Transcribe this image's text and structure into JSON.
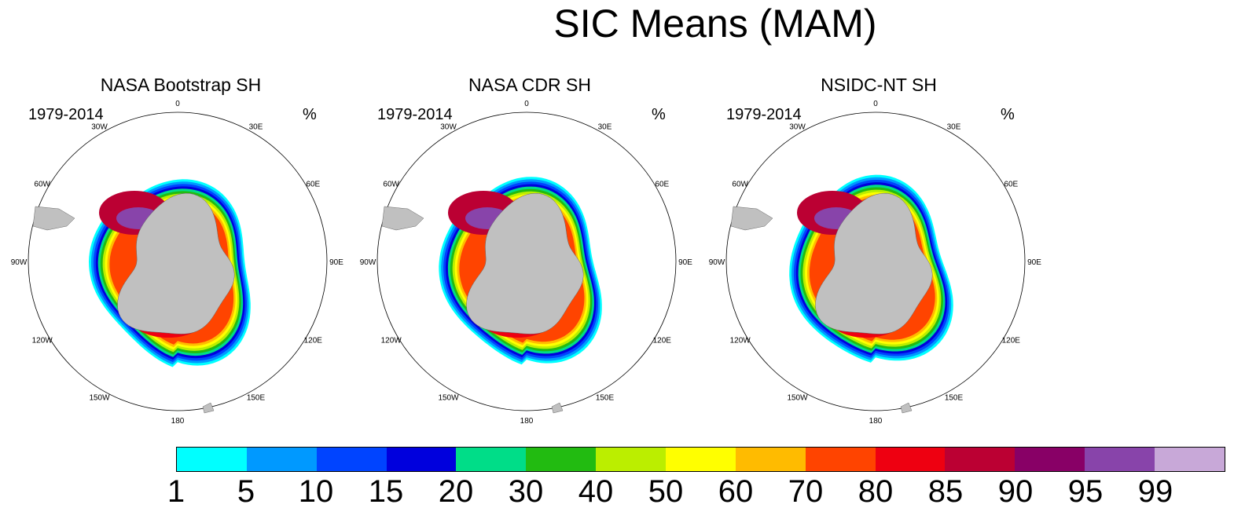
{
  "title": "SIC Means (MAM)",
  "panels": [
    {
      "title": "NASA Bootstrap SH",
      "period": "1979-2014",
      "units": "%"
    },
    {
      "title": "NASA CDR SH",
      "period": "1979-2014",
      "units": "%"
    },
    {
      "title": "NSIDC-NT SH",
      "period": "1979-2014",
      "units": "%"
    }
  ],
  "longitude_labels": [
    "0",
    "30E",
    "60E",
    "90E",
    "120E",
    "150E",
    "180",
    "150W",
    "120W",
    "90W",
    "60W",
    "30W"
  ],
  "colorbar": {
    "ticks": [
      "1",
      "5",
      "10",
      "15",
      "20",
      "30",
      "40",
      "50",
      "60",
      "70",
      "80",
      "85",
      "90",
      "95",
      "99"
    ],
    "colors": [
      "#00ffff",
      "#0099ff",
      "#0044ff",
      "#0000dd",
      "#00dd88",
      "#22bb11",
      "#bbee00",
      "#ffff00",
      "#ffbb00",
      "#ff4400",
      "#ee0011",
      "#bb0033",
      "#880066",
      "#8844aa",
      "#c8a8d8"
    ]
  },
  "map_colors": {
    "land": "#c0c0c0",
    "ocean": "#ffffff"
  }
}
